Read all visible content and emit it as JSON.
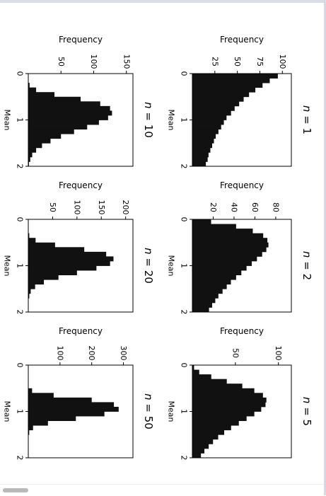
{
  "chart_data": [
    {
      "type": "bar",
      "title_var": "n",
      "title_eq": " = ",
      "title_val": "1",
      "xlabel": "Mean",
      "ylabel": "Frequency",
      "xlim": [
        0,
        2
      ],
      "xticks": [
        "0",
        "1",
        "2"
      ],
      "ylim": [
        0,
        110
      ],
      "yticks": [
        {
          "v": 25,
          "label": "25"
        },
        {
          "v": 50,
          "label": "50"
        },
        {
          "v": 75,
          "label": "75"
        },
        {
          "v": 100,
          "label": "100"
        }
      ],
      "x": [
        0.05,
        0.15,
        0.25,
        0.35,
        0.45,
        0.55,
        0.65,
        0.75,
        0.85,
        0.95,
        1.05,
        1.15,
        1.25,
        1.35,
        1.45,
        1.55,
        1.65,
        1.75,
        1.85,
        1.95
      ],
      "values": [
        95,
        86,
        78,
        70,
        63,
        57,
        52,
        47,
        43,
        38,
        35,
        32,
        29,
        26,
        24,
        22,
        20,
        18,
        17,
        15
      ]
    },
    {
      "type": "bar",
      "title_var": "n",
      "title_eq": " = ",
      "title_val": "2",
      "xlabel": "Mean",
      "ylabel": "Frequency",
      "xlim": [
        0,
        2
      ],
      "xticks": [
        "0",
        "1",
        "2"
      ],
      "ylim": [
        0,
        95
      ],
      "yticks": [
        {
          "v": 20,
          "label": "20"
        },
        {
          "v": 40,
          "label": "40"
        },
        {
          "v": 60,
          "label": "60"
        },
        {
          "v": 80,
          "label": "80"
        }
      ],
      "x": [
        0.05,
        0.15,
        0.25,
        0.35,
        0.45,
        0.55,
        0.65,
        0.75,
        0.85,
        0.95,
        1.05,
        1.15,
        1.25,
        1.35,
        1.45,
        1.55,
        1.65,
        1.75,
        1.85,
        1.95
      ],
      "values": [
        18,
        42,
        58,
        68,
        72,
        73,
        71,
        67,
        62,
        57,
        52,
        47,
        42,
        37,
        33,
        29,
        25,
        22,
        19,
        16
      ]
    },
    {
      "type": "bar",
      "title_var": "n",
      "title_eq": " = ",
      "title_val": "5",
      "xlabel": "Mean",
      "ylabel": "Frequency",
      "xlim": [
        0,
        2
      ],
      "xticks": [
        "0",
        "1",
        "2"
      ],
      "ylim": [
        0,
        115
      ],
      "yticks": [
        {
          "v": 50,
          "label": "50"
        },
        {
          "v": 100,
          "label": "100"
        }
      ],
      "x": [
        0.05,
        0.15,
        0.25,
        0.35,
        0.45,
        0.55,
        0.65,
        0.75,
        0.85,
        0.95,
        1.05,
        1.15,
        1.25,
        1.35,
        1.45,
        1.55,
        1.65,
        1.75,
        1.85,
        1.95
      ],
      "values": [
        2,
        8,
        22,
        40,
        58,
        72,
        82,
        86,
        85,
        80,
        72,
        63,
        54,
        45,
        37,
        30,
        24,
        19,
        14,
        10
      ]
    },
    {
      "type": "bar",
      "title_var": "n",
      "title_eq": " = ",
      "title_val": "10",
      "xlabel": "Mean",
      "ylabel": "Frequency",
      "xlim": [
        0,
        2
      ],
      "xticks": [
        "0",
        "1",
        "2"
      ],
      "ylim": [
        0,
        160
      ],
      "yticks": [
        {
          "v": 50,
          "label": "50"
        },
        {
          "v": 100,
          "label": "100"
        },
        {
          "v": 150,
          "label": "150"
        }
      ],
      "x": [
        0.05,
        0.15,
        0.25,
        0.35,
        0.45,
        0.55,
        0.65,
        0.75,
        0.85,
        0.95,
        1.05,
        1.15,
        1.25,
        1.35,
        1.45,
        1.55,
        1.65,
        1.75,
        1.85,
        1.95
      ],
      "values": [
        0,
        0,
        2,
        12,
        40,
        80,
        110,
        125,
        128,
        122,
        108,
        90,
        70,
        50,
        34,
        21,
        12,
        6,
        3,
        1
      ]
    },
    {
      "type": "bar",
      "title_var": "n",
      "title_eq": " = ",
      "title_val": "20",
      "xlabel": "Mean",
      "ylabel": "Frequency",
      "xlim": [
        0,
        2
      ],
      "xticks": [
        "0",
        "1",
        "2"
      ],
      "ylim": [
        0,
        215
      ],
      "yticks": [
        {
          "v": 50,
          "label": "50"
        },
        {
          "v": 100,
          "label": "100"
        },
        {
          "v": 150,
          "label": "150"
        },
        {
          "v": 200,
          "label": "200"
        }
      ],
      "x": [
        0.05,
        0.15,
        0.25,
        0.35,
        0.45,
        0.55,
        0.65,
        0.75,
        0.85,
        0.95,
        1.05,
        1.15,
        1.25,
        1.35,
        1.45,
        1.55,
        1.65,
        1.75,
        1.85,
        1.95
      ],
      "values": [
        0,
        0,
        0,
        2,
        15,
        55,
        115,
        160,
        175,
        168,
        140,
        100,
        62,
        32,
        14,
        5,
        2,
        0,
        0,
        0
      ]
    },
    {
      "type": "bar",
      "title_var": "n",
      "title_eq": " = ",
      "title_val": "50",
      "xlabel": "Mean",
      "ylabel": "Frequency",
      "xlim": [
        0,
        2
      ],
      "xticks": [
        "0",
        "1",
        "2"
      ],
      "ylim": [
        0,
        330
      ],
      "yticks": [
        {
          "v": 100,
          "label": "100"
        },
        {
          "v": 200,
          "label": "200"
        },
        {
          "v": 300,
          "label": "300"
        }
      ],
      "x": [
        0.05,
        0.15,
        0.25,
        0.35,
        0.45,
        0.55,
        0.65,
        0.75,
        0.85,
        0.95,
        1.05,
        1.15,
        1.25,
        1.35,
        1.45,
        1.55,
        1.65,
        1.75,
        1.85,
        1.95
      ],
      "values": [
        0,
        0,
        0,
        0,
        0,
        12,
        80,
        200,
        270,
        285,
        240,
        150,
        62,
        15,
        3,
        0,
        0,
        0,
        0,
        0
      ]
    }
  ]
}
